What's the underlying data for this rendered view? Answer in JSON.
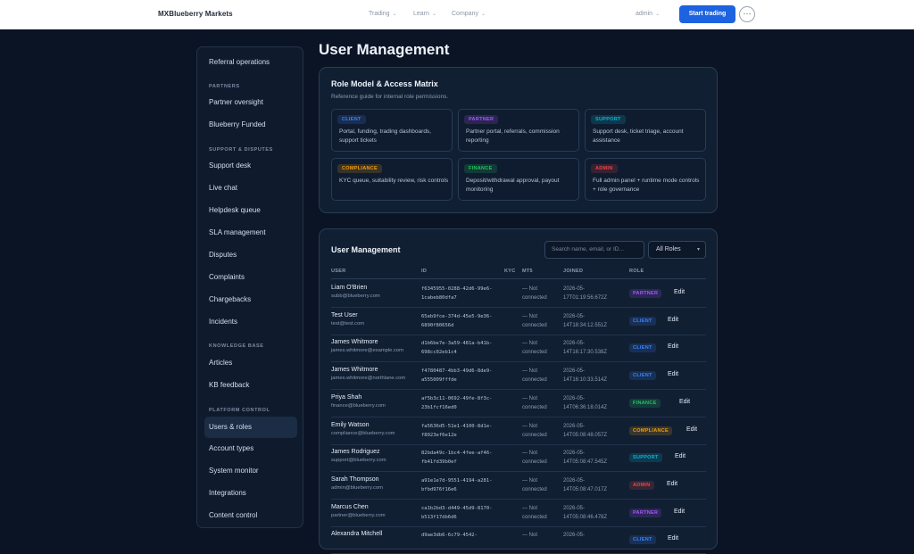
{
  "topbar": {
    "brand": "MXBlueberry Markets",
    "nav": [
      "Trading",
      "Learn",
      "Company"
    ],
    "user": "admin",
    "cta": "Start trading",
    "more_icon": "ellipsis-icon"
  },
  "sidebar": {
    "first_item": "Referral operations",
    "sections": [
      {
        "title": "PARTNERS",
        "items": [
          "Partner oversight",
          "Blueberry Funded"
        ]
      },
      {
        "title": "SUPPORT & DISPUTES",
        "items": [
          "Support desk",
          "Live chat",
          "Helpdesk queue",
          "SLA management",
          "Disputes",
          "Complaints",
          "Chargebacks",
          "Incidents"
        ]
      },
      {
        "title": "KNOWLEDGE BASE",
        "items": [
          "Articles",
          "KB feedback"
        ]
      },
      {
        "title": "PLATFORM CONTROL",
        "items": [
          "Users & roles",
          "Account types",
          "System monitor",
          "Integrations",
          "Content control"
        ]
      }
    ],
    "active": "Users & roles"
  },
  "page_title": "User Management",
  "roles_panel": {
    "title": "Role Model & Access Matrix",
    "subtitle": "Reference guide for internal role permissions.",
    "cards": [
      {
        "badge": "CLIENT",
        "desc": "Portal, funding, trading dashboards, support tickets",
        "color": "#3b82f6"
      },
      {
        "badge": "PARTNER",
        "desc": "Partner portal, referrals, commission reporting",
        "color": "#a855f7"
      },
      {
        "badge": "SUPPORT",
        "desc": "Support desk, ticket triage, account assistance",
        "color": "#06b6d4"
      },
      {
        "badge": "COMPLIANCE",
        "desc": "KYC queue, suitability review, risk controls",
        "color": "#f59e0b"
      },
      {
        "badge": "FINANCE",
        "desc": "Deposit/withdrawal approval, payout monitoring",
        "color": "#22c55e"
      },
      {
        "badge": "ADMIN",
        "desc": "Full admin panel + runtime mode controls + role governance",
        "color": "#ef4444"
      }
    ]
  },
  "users_panel": {
    "title": "User Management",
    "search_placeholder": "Search name, email, or ID...",
    "filter": "All Roles",
    "columns": [
      "USER",
      "ID",
      "KYC",
      "MT5",
      "JOINED",
      "ROLE"
    ],
    "edit_label": "Edit",
    "rows": [
      {
        "name": "Liam O'Brien",
        "email": "subb@blueberry.com",
        "id": "f6345955-0288-42d6-99e6-1cabeb80dfa7",
        "kyc": "",
        "mt5": "— Not connected",
        "joined": "2026-05-17T01:19:56.672Z",
        "role": "PARTNER",
        "color": "#a855f7"
      },
      {
        "name": "Test User",
        "email": "test@test.com",
        "id": "65eb9fce-374d-45e5-9e36-6890f80656d",
        "kyc": "",
        "mt5": "— Not connected",
        "joined": "2026-05-14T18:34:12.551Z",
        "role": "CLIENT",
        "color": "#3b82f6"
      },
      {
        "name": "James Whitmore",
        "email": "james.whitmore@example.com",
        "id": "d1b6be7e-3a59-481a-b41b-698cc02eb1c4",
        "kyc": "",
        "mt5": "— Not connected",
        "joined": "2026-05-14T16:17:30.538Z",
        "role": "CLIENT",
        "color": "#3b82f6"
      },
      {
        "name": "James Whitmore",
        "email": "james.whitmore@northlane.com",
        "id": "f4780487-4bb3-49d6-8de9-a555009fffde",
        "kyc": "",
        "mt5": "— Not connected",
        "joined": "2026-05-14T16:10:33.514Z",
        "role": "CLIENT",
        "color": "#3b82f6"
      },
      {
        "name": "Priya Shah",
        "email": "finance@blueberry.com",
        "id": "af5b3c11-0692-49fe-8f3c-23b1fcf16ed0",
        "kyc": "",
        "mt5": "— Not connected",
        "joined": "2026-05-14T06:36:18.014Z",
        "role": "FINANCE",
        "color": "#22c55e"
      },
      {
        "name": "Emily Watson",
        "email": "compliance@blueberry.com",
        "id": "fa5636d5-51e1-4100-8d1e-f8023ef6e12e",
        "kyc": "",
        "mt5": "— Not connected",
        "joined": "2026-05-14T05:08:48.057Z",
        "role": "COMPLIANCE",
        "color": "#f59e0b"
      },
      {
        "name": "James Rodriguez",
        "email": "support@blueberry.com",
        "id": "82bda49c-1bc4-4fee-af46-fb41fd39b0ef",
        "kyc": "",
        "mt5": "— Not connected",
        "joined": "2026-05-14T05:08:47.545Z",
        "role": "SUPPORT",
        "color": "#06b6d4"
      },
      {
        "name": "Sarah Thompson",
        "email": "admin@blueberry.com",
        "id": "a91e1e7d-9551-4194-a281-bfbd976f16e6",
        "kyc": "",
        "mt5": "— Not connected",
        "joined": "2026-05-14T05:08:47.017Z",
        "role": "ADMIN",
        "color": "#ef4444"
      },
      {
        "name": "Marcus Chen",
        "email": "partner@blueberry.com",
        "id": "ca1b2bd3-d449-45d9-8170-b513f17db6d6",
        "kyc": "",
        "mt5": "— Not connected",
        "joined": "2026-05-14T05:08:46.478Z",
        "role": "PARTNER",
        "color": "#a855f7"
      },
      {
        "name": "Alexandra Mitchell",
        "email": "",
        "id": "d9ae3db6-6c79-4542-",
        "kyc": "",
        "mt5": "— Not",
        "joined": "2026-05-",
        "role": "CLIENT",
        "color": "#3b82f6"
      }
    ]
  }
}
